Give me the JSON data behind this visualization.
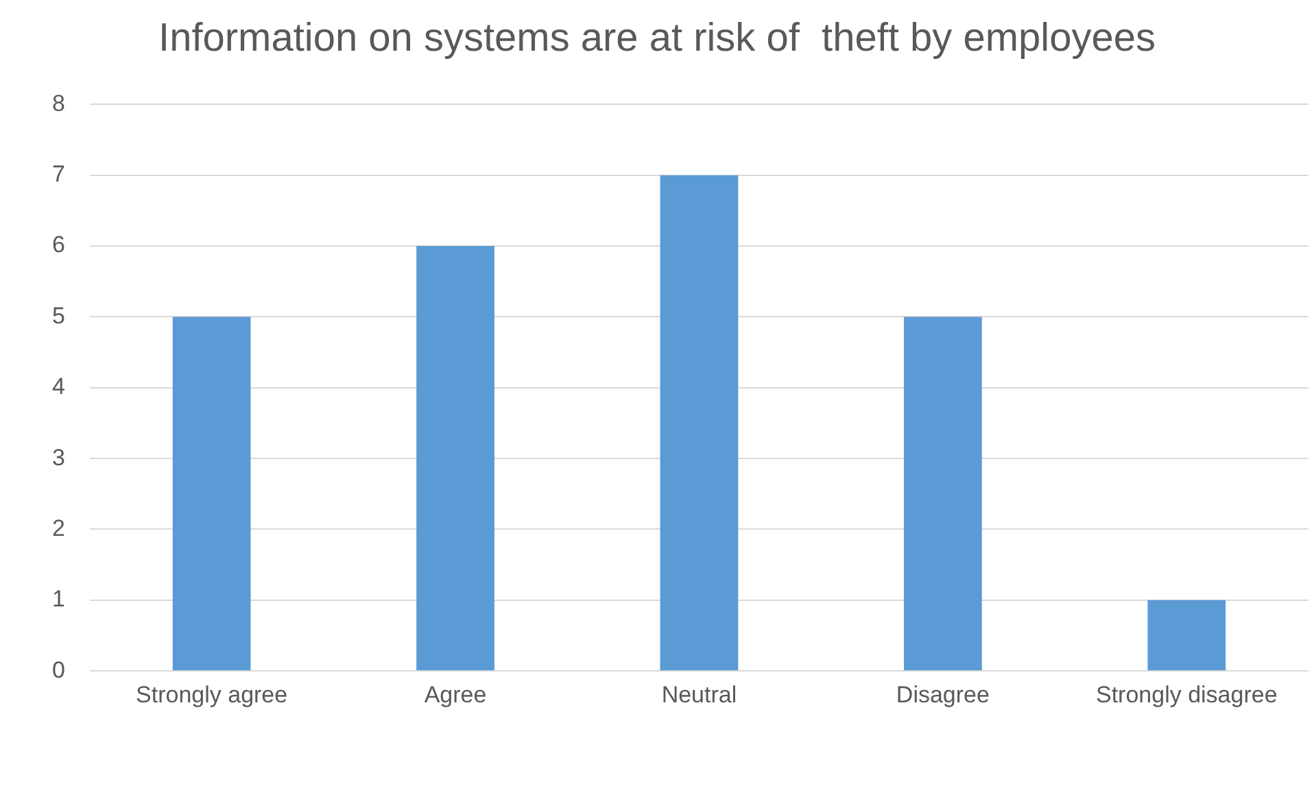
{
  "chart_data": {
    "type": "bar",
    "title": "Information on systems are at risk of  theft by employees",
    "categories": [
      "Strongly agree",
      "Agree",
      "Neutral",
      "Disagree",
      "Strongly disagree"
    ],
    "values": [
      5,
      6,
      7,
      5,
      1
    ],
    "color": "#5b9bd5",
    "ylim": [
      0,
      8
    ],
    "yticks": [
      0,
      1,
      2,
      3,
      4,
      5,
      6,
      7,
      8
    ],
    "grid": "y",
    "legend": false
  }
}
